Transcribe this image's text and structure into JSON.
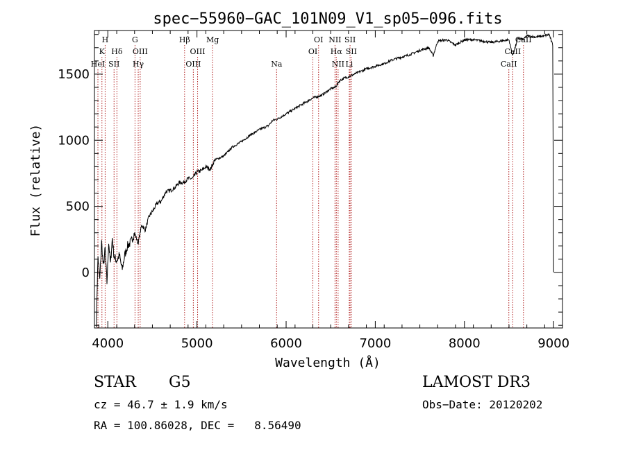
{
  "chart_data": {
    "type": "line",
    "title": "spec−55960−GAC_101N09_V1_sp05−096.fits",
    "xlabel": "Wavelength (Å)",
    "ylabel": "Flux (relative)",
    "xlim": [
      3850,
      9100
    ],
    "ylim": [
      -420,
      1830
    ],
    "x_ticks": [
      4000,
      5000,
      6000,
      7000,
      8000,
      9000
    ],
    "x_tick_labels": [
      "4000",
      "5000",
      "6000",
      "7000",
      "8000",
      "9000"
    ],
    "y_ticks": [
      0,
      500,
      1000,
      1500
    ],
    "y_tick_labels": [
      "0",
      "500",
      "1000",
      "1500"
    ],
    "grid": false,
    "series": [
      {
        "name": "spectrum",
        "color": "#000000",
        "x": [
          3870,
          3890,
          3910,
          3930,
          3950,
          3970,
          3990,
          4010,
          4030,
          4050,
          4070,
          4100,
          4130,
          4160,
          4190,
          4220,
          4260,
          4300,
          4340,
          4380,
          4420,
          4460,
          4500,
          4550,
          4600,
          4650,
          4700,
          4750,
          4800,
          4850,
          4900,
          4950,
          5000,
          5050,
          5100,
          5150,
          5200,
          5300,
          5400,
          5500,
          5600,
          5700,
          5800,
          5850,
          5900,
          5950,
          6000,
          6100,
          6200,
          6300,
          6400,
          6500,
          6550,
          6600,
          6650,
          6700,
          6800,
          6900,
          7000,
          7100,
          7200,
          7300,
          7400,
          7500,
          7600,
          7650,
          7700,
          7800,
          7900,
          8000,
          8100,
          8200,
          8300,
          8400,
          8500,
          8540,
          8600,
          8660,
          8700,
          8800,
          8900,
          8950,
          8990,
          9000
        ],
        "y": [
          -380,
          120,
          -60,
          230,
          40,
          180,
          -80,
          230,
          60,
          260,
          120,
          90,
          130,
          20,
          130,
          200,
          230,
          300,
          220,
          360,
          320,
          420,
          460,
          520,
          540,
          610,
          620,
          640,
          680,
          680,
          710,
          710,
          760,
          770,
          800,
          780,
          850,
          880,
          950,
          990,
          1040,
          1080,
          1110,
          1150,
          1160,
          1180,
          1200,
          1240,
          1280,
          1320,
          1340,
          1390,
          1400,
          1450,
          1470,
          1480,
          1510,
          1540,
          1560,
          1580,
          1610,
          1630,
          1650,
          1680,
          1700,
          1640,
          1750,
          1760,
          1720,
          1760,
          1760,
          1750,
          1740,
          1750,
          1760,
          1640,
          1770,
          1760,
          1790,
          1780,
          1790,
          1800,
          1720,
          0
        ]
      }
    ],
    "line_markers": [
      {
        "label": "H",
        "x": 3970,
        "row": 0
      },
      {
        "label": "K",
        "x": 3934,
        "row": 1
      },
      {
        "label": "HeI",
        "x": 3889,
        "row": 2
      },
      {
        "label": "SII",
        "x": 4070,
        "row": 2
      },
      {
        "label": "Hδ",
        "x": 4102,
        "row": 1
      },
      {
        "label": "G",
        "x": 4305,
        "row": 0
      },
      {
        "label": "OIII",
        "x": 4363,
        "row": 1
      },
      {
        "label": "Hγ",
        "x": 4341,
        "row": 2
      },
      {
        "label": "Hβ",
        "x": 4861,
        "row": 0
      },
      {
        "label": "OIII",
        "x": 5007,
        "row": 1
      },
      {
        "label": "OIII",
        "x": 4959,
        "row": 2
      },
      {
        "label": "Mg",
        "x": 5175,
        "row": 0
      },
      {
        "label": "Na",
        "x": 5893,
        "row": 2
      },
      {
        "label": "OI",
        "x": 6364,
        "row": 0
      },
      {
        "label": "OI",
        "x": 6300,
        "row": 1
      },
      {
        "label": "NII",
        "x": 6548,
        "row": 0
      },
      {
        "label": "SII",
        "x": 6717,
        "row": 0
      },
      {
        "label": "Hα",
        "x": 6563,
        "row": 1
      },
      {
        "label": "SII",
        "x": 6731,
        "row": 1
      },
      {
        "label": "NII",
        "x": 6583,
        "row": 2
      },
      {
        "label": "Li",
        "x": 6708,
        "row": 2
      },
      {
        "label": "CaII",
        "x": 8662,
        "row": 0
      },
      {
        "label": "CaII",
        "x": 8542,
        "row": 1
      },
      {
        "label": "CaII",
        "x": 8498,
        "row": 2
      }
    ],
    "marker_color": "#b22222"
  },
  "info": {
    "class": "STAR",
    "subclass": "G5",
    "survey": "LAMOST DR3",
    "cz": "cz = 46.7 ± 1.9 km/s",
    "obs_date": "Obs−Date: 20120202",
    "coords": "RA = 100.86028, DEC =   8.56490"
  }
}
